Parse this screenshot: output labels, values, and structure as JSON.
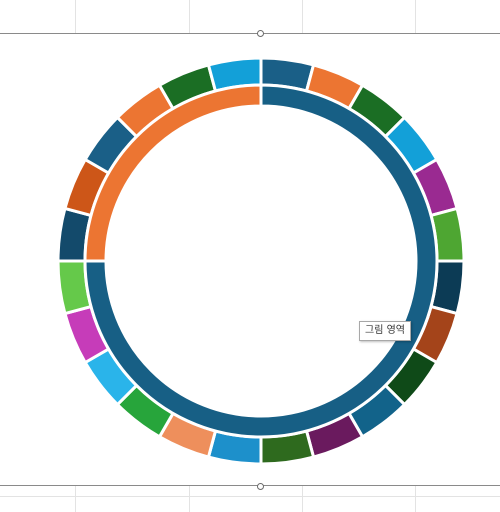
{
  "tooltip": {
    "text": "그림 영역"
  },
  "chart_data": {
    "type": "pie",
    "variant": "doughnut",
    "title": "",
    "legend": "none",
    "series": [
      {
        "ring": "outer",
        "values": [
          1,
          1,
          1,
          1,
          1,
          1,
          1,
          1,
          1,
          1,
          1,
          1,
          1,
          1,
          1,
          1,
          1,
          1,
          1,
          1,
          1,
          1,
          1,
          1
        ],
        "colors": [
          "#1a5f87",
          "#ec7532",
          "#1b6e24",
          "#13a0d8",
          "#9a2a91",
          "#4ea632",
          "#0c3b55",
          "#a4441a",
          "#0f4a18",
          "#12638a",
          "#6a1a5e",
          "#2e6a1e",
          "#1d90cb",
          "#ee8f5c",
          "#27a53b",
          "#2ab4ea",
          "#c63cb9",
          "#65c94a",
          "#134a6b",
          "#cd5618",
          "#1a5f87",
          "#ec7532",
          "#1b6e24",
          "#13a0d8"
        ]
      },
      {
        "ring": "inner",
        "values": [
          75,
          25
        ],
        "colors": [
          "#175f85",
          "#ec7532"
        ]
      }
    ]
  }
}
